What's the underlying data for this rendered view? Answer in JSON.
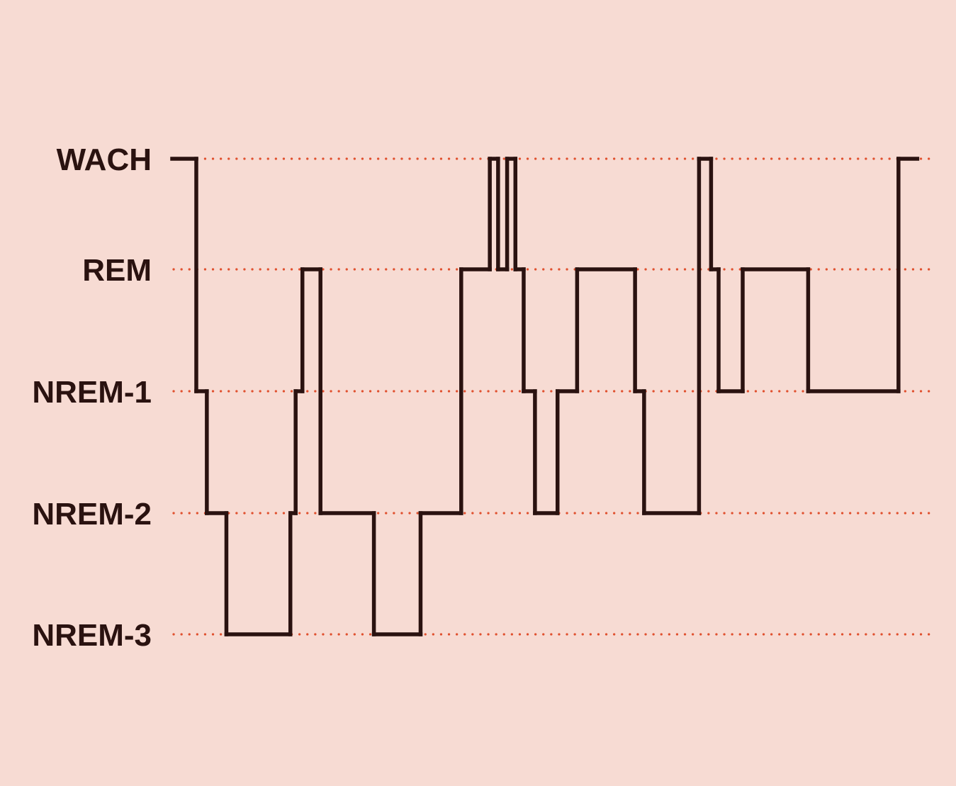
{
  "colors": {
    "background": "#f7dbd3",
    "line": "#2a1210",
    "gridline": "#e0502e",
    "label": "#2a1210"
  },
  "chart_data": {
    "type": "line",
    "step": true,
    "categories": [
      "WACH",
      "REM",
      "NREM-1",
      "NREM-2",
      "NREM-3"
    ],
    "grid": "dotted horizontal gridline per stage",
    "xlabel": "",
    "ylabel": "",
    "xlim": [
      0,
      1000
    ],
    "series": [
      {
        "points": [
          [
            0,
            "WACH"
          ],
          [
            32,
            "NREM-1"
          ],
          [
            46,
            "NREM-2"
          ],
          [
            72,
            "NREM-3"
          ],
          [
            157,
            "NREM-2"
          ],
          [
            164,
            "NREM-1"
          ],
          [
            173,
            "REM"
          ],
          [
            197,
            "NREM-2"
          ],
          [
            268,
            "NREM-3"
          ],
          [
            330,
            "NREM-2"
          ],
          [
            384,
            "REM"
          ],
          [
            422,
            "WACH"
          ],
          [
            433,
            "REM"
          ],
          [
            445,
            "WACH"
          ],
          [
            456,
            "REM"
          ],
          [
            467,
            "NREM-1"
          ],
          [
            482,
            "NREM-2"
          ],
          [
            512,
            "NREM-1"
          ],
          [
            538,
            "REM"
          ],
          [
            615,
            "NREM-1"
          ],
          [
            627,
            "NREM-2"
          ],
          [
            700,
            "WACH"
          ],
          [
            716,
            "REM"
          ],
          [
            726,
            "NREM-1"
          ],
          [
            758,
            "REM"
          ],
          [
            845,
            "NREM-1"
          ],
          [
            965,
            "WACH"
          ],
          [
            990,
            "WACH"
          ]
        ]
      }
    ]
  }
}
